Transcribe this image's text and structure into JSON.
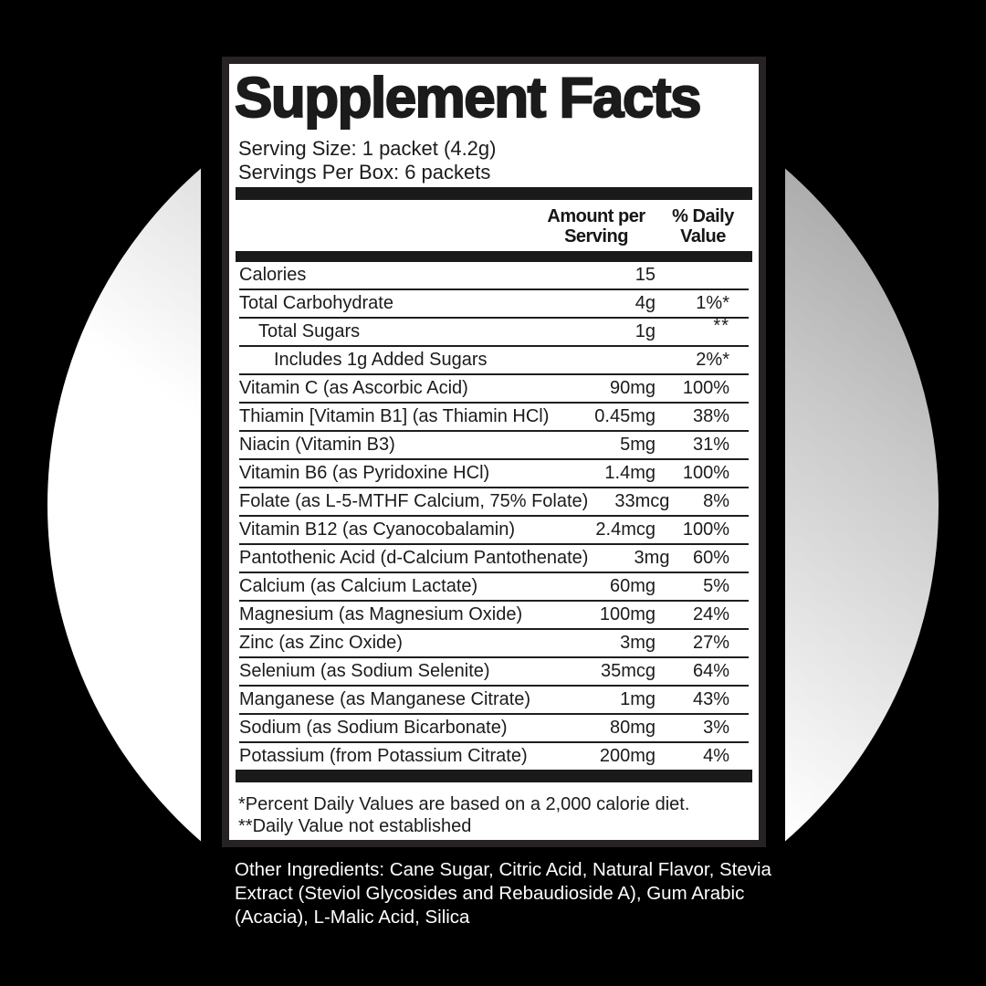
{
  "background": {
    "page_color": "#000000",
    "circle_gradient_start": "#8f8f8f",
    "circle_gradient_end": "#ffffff"
  },
  "label": {
    "title": "Supplement Facts",
    "serving_size": "Serving Size: 1 packet (4.2g)",
    "servings_per_box": "Servings Per Box: 6 packets",
    "columns": {
      "amount": "Amount per Serving",
      "daily_value": "% Daily Value"
    },
    "rows": [
      {
        "name": "Calories",
        "amount": "15",
        "dv": "",
        "level": 0
      },
      {
        "name": "Total Carbohydrate",
        "amount": "4g",
        "dv": "1%*",
        "level": 0
      },
      {
        "name": "Total Sugars",
        "amount": "1g",
        "dv": "**",
        "level": 1
      },
      {
        "name": "Includes 1g Added Sugars",
        "amount": "",
        "dv": "2%*",
        "level": 2
      },
      {
        "name": "Vitamin C (as Ascorbic Acid)",
        "amount": "90mg",
        "dv": "100%",
        "level": 0
      },
      {
        "name": "Thiamin [Vitamin B1] (as Thiamin HCl)",
        "amount": "0.45mg",
        "dv": "38%",
        "level": 0
      },
      {
        "name": "Niacin (Vitamin B3)",
        "amount": "5mg",
        "dv": "31%",
        "level": 0
      },
      {
        "name": "Vitamin B6 (as Pyridoxine HCl)",
        "amount": "1.4mg",
        "dv": "100%",
        "level": 0
      },
      {
        "name": "Folate (as L-5-MTHF Calcium, 75% Folate)",
        "amount": "33mcg",
        "dv": "8%",
        "level": 0
      },
      {
        "name": "Vitamin B12 (as Cyanocobalamin)",
        "amount": "2.4mcg",
        "dv": "100%",
        "level": 0
      },
      {
        "name": "Pantothenic Acid (d-Calcium Pantothenate)",
        "amount": "3mg",
        "dv": "60%",
        "level": 0
      },
      {
        "name": "Calcium (as Calcium Lactate)",
        "amount": "60mg",
        "dv": "5%",
        "level": 0
      },
      {
        "name": "Magnesium (as Magnesium Oxide)",
        "amount": "100mg",
        "dv": "24%",
        "level": 0
      },
      {
        "name": "Zinc (as Zinc Oxide)",
        "amount": "3mg",
        "dv": "27%",
        "level": 0
      },
      {
        "name": "Selenium (as Sodium Selenite)",
        "amount": "35mcg",
        "dv": "64%",
        "level": 0
      },
      {
        "name": "Manganese (as Manganese Citrate)",
        "amount": "1mg",
        "dv": "43%",
        "level": 0
      },
      {
        "name": "Sodium (as Sodium Bicarbonate)",
        "amount": "80mg",
        "dv": "3%",
        "level": 0
      },
      {
        "name": "Potassium (from Potassium Citrate)",
        "amount": "200mg",
        "dv": "4%",
        "level": 0
      }
    ],
    "footnotes": [
      "*Percent Daily Values are based on a 2,000 calorie diet.",
      "**Daily Value not established"
    ]
  },
  "other_ingredients": "Other Ingredients: Cane Sugar, Citric Acid, Natural Flavor, Stevia Extract (Steviol Glycosides and Rebaudioside A), Gum Arabic (Acacia), L-Malic Acid, Silica"
}
